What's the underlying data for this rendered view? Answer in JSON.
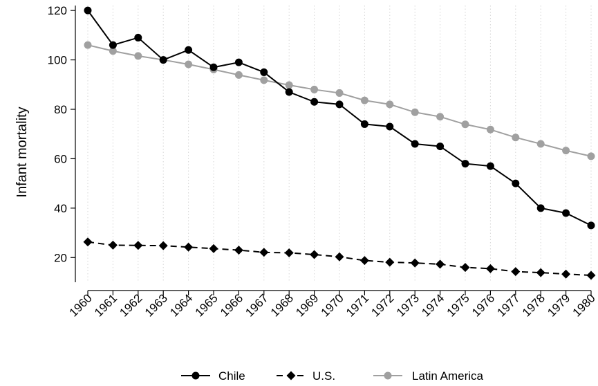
{
  "chart_data": {
    "type": "line",
    "title": "",
    "xlabel": "",
    "ylabel": "Infant mortality",
    "x": [
      "1960",
      "1961",
      "1962",
      "1963",
      "1964",
      "1965",
      "1966",
      "1967",
      "1968",
      "1969",
      "1970",
      "1971",
      "1972",
      "1973",
      "1974",
      "1975",
      "1976",
      "1977",
      "1978",
      "1979",
      "1980"
    ],
    "ylim": [
      10,
      122
    ],
    "yticks": [
      20,
      40,
      60,
      80,
      100,
      120
    ],
    "grid": "vertical-dotted",
    "legend_position": "bottom",
    "series": [
      {
        "name": "Chile",
        "color": "#000000",
        "marker": "circle",
        "line_style": "solid",
        "values": [
          120,
          106,
          109,
          100,
          104,
          97,
          99,
          95,
          87,
          83,
          82,
          74,
          73,
          66,
          65,
          58,
          57,
          50,
          40,
          38,
          33
        ]
      },
      {
        "name": "U.S.",
        "color": "#000000",
        "marker": "diamond",
        "line_style": "dashed",
        "values": [
          26.3,
          25.0,
          24.9,
          24.8,
          24.2,
          23.6,
          23.0,
          22.1,
          21.9,
          21.2,
          20.3,
          18.8,
          18.1,
          17.8,
          17.3,
          16.0,
          15.5,
          14.3,
          13.9,
          13.3,
          12.8
        ]
      },
      {
        "name": "Latin America",
        "color": "#a0a0a0",
        "marker": "circle",
        "line_style": "solid",
        "values": [
          106,
          103.6,
          101.6,
          100,
          98.2,
          96.1,
          93.9,
          91.8,
          89.8,
          88,
          86.6,
          83.6,
          82,
          78.8,
          77,
          73.9,
          71.8,
          68.6,
          66,
          63.3,
          61
        ]
      }
    ]
  }
}
